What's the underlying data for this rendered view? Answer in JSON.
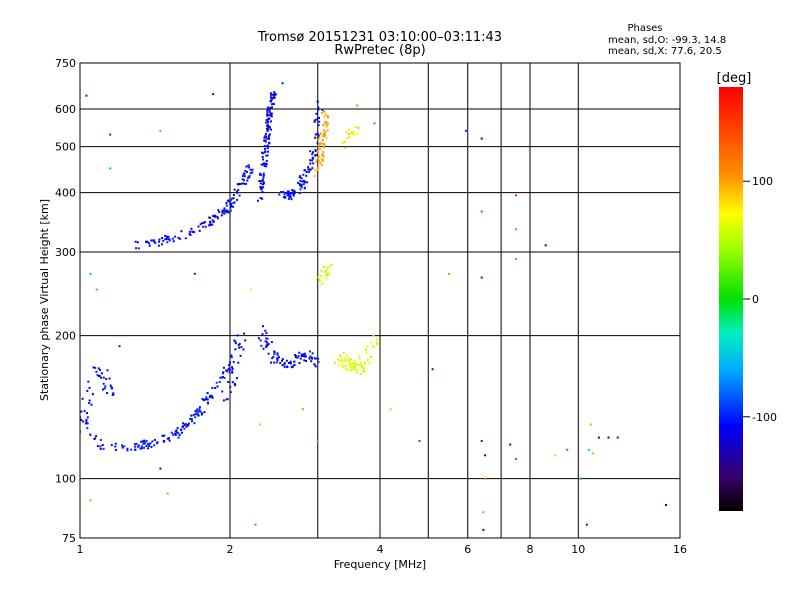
{
  "header": {
    "title": "Tromsø 20151231 03:10:00–03:11:43",
    "subtitle": "RwPretec (8p)",
    "phases_title": "Phases",
    "stats_o": "mean, sd,O: -99.3, 14.8",
    "stats_x": "mean, sd,X:  77.6, 20.5"
  },
  "colorbar": {
    "unit_label": "[deg]",
    "ticks": [
      "100",
      "0",
      "-100"
    ],
    "tick_values": [
      100,
      0,
      -100
    ],
    "range": [
      -180,
      180
    ]
  },
  "chart_data": {
    "type": "scatter",
    "title": "Tromsø 20151231 03:10:00–03:11:43",
    "subtitle": "RwPretec (8p)",
    "xlabel": "Frequency [MHz]",
    "ylabel": "Stationary phase Virtual Height [km]",
    "xscale": "log",
    "yscale": "log",
    "xlim": [
      1,
      16
    ],
    "ylim": [
      75,
      750
    ],
    "grid": true,
    "x_ticks": [
      1,
      2,
      4,
      6,
      8,
      10,
      16
    ],
    "x_tick_labels": [
      "1",
      "2",
      "4",
      "6",
      "8",
      "10",
      "16"
    ],
    "y_ticks": [
      75,
      100,
      200,
      300,
      400,
      500,
      600,
      750
    ],
    "y_tick_labels": [
      "75",
      "100",
      "200",
      "300",
      "400",
      "500",
      "600",
      "750"
    ],
    "extra_vlines": [
      3,
      5,
      7
    ],
    "colorbar_label": "[deg]",
    "color_range": [
      -180,
      180
    ],
    "traces": [
      {
        "x": [
          1.0,
          1.05,
          1.1,
          1.2,
          1.3,
          1.35,
          1.4,
          1.45,
          1.5,
          1.55,
          1.6,
          1.65,
          1.7,
          1.75,
          1.8,
          1.85,
          1.9,
          1.95,
          2.0
        ],
        "y": [
          135,
          125,
          118,
          116,
          117,
          118,
          119,
          120,
          122,
          124,
          127,
          131,
          135,
          140,
          146,
          152,
          158,
          165,
          175
        ],
        "phase": -105,
        "spread": 4,
        "n": 150
      },
      {
        "x": [
          1.0,
          1.03,
          1.06,
          1.1,
          1.13,
          1.16
        ],
        "y": [
          125,
          140,
          160,
          170,
          160,
          150
        ],
        "phase": -108,
        "spread": 6,
        "n": 45
      },
      {
        "x": [
          1.3,
          1.4,
          1.5,
          1.6,
          1.7,
          1.8,
          1.9,
          1.95,
          2.0,
          2.05,
          2.1,
          2.15,
          2.2
        ],
        "y": [
          310,
          312,
          318,
          326,
          335,
          345,
          357,
          366,
          376,
          392,
          412,
          432,
          458
        ],
        "phase": -108,
        "spread": 4,
        "n": 140
      },
      {
        "x": [
          2.3,
          2.32,
          2.35,
          2.38,
          2.4,
          2.42,
          2.45
        ],
        "y": [
          380,
          430,
          480,
          530,
          580,
          620,
          650
        ],
        "phase": -110,
        "spread": 3,
        "n": 130
      },
      {
        "x": [
          2.55,
          2.6,
          2.65,
          2.7,
          2.75,
          2.8,
          2.85,
          2.9,
          2.95,
          3.0,
          3.05
        ],
        "y": [
          400,
          395,
          395,
          400,
          410,
          420,
          440,
          460,
          500,
          560,
          620
        ],
        "phase": -108,
        "spread": 4,
        "n": 100
      },
      {
        "x": [
          2.3,
          2.35,
          2.4,
          2.45,
          2.5,
          2.55,
          2.6,
          2.65,
          2.7,
          2.75,
          2.8,
          2.9,
          3.0
        ],
        "y": [
          215,
          195,
          185,
          180,
          178,
          176,
          175,
          176,
          178,
          180,
          183,
          180,
          175
        ],
        "phase": -108,
        "spread": 5,
        "n": 90
      },
      {
        "x": [
          1.95,
          2.0,
          2.05,
          2.1
        ],
        "y": [
          150,
          160,
          180,
          200
        ],
        "phase": -112,
        "spread": 6,
        "n": 35
      },
      {
        "x": [
          3.0,
          3.02,
          3.05,
          3.08,
          3.1,
          3.12
        ],
        "y": [
          440,
          470,
          500,
          530,
          560,
          600
        ],
        "phase": 100,
        "spread": 4,
        "n": 60
      },
      {
        "x": [
          3.3,
          3.4,
          3.5,
          3.6,
          3.7,
          3.8,
          3.9
        ],
        "y": [
          180,
          175,
          172,
          170,
          175,
          185,
          200
        ],
        "phase": 60,
        "spread": 6,
        "n": 75
      },
      {
        "x": [
          3.05,
          3.1,
          3.15
        ],
        "y": [
          260,
          270,
          280
        ],
        "phase": 55,
        "spread": 5,
        "n": 22
      },
      {
        "x": [
          3.4,
          3.5,
          3.6
        ],
        "y": [
          500,
          530,
          550
        ],
        "phase": 80,
        "spread": 5,
        "n": 16
      }
    ],
    "points": [
      {
        "x": 1.03,
        "y": 640,
        "phase": -100
      },
      {
        "x": 1.15,
        "y": 530,
        "phase": -95
      },
      {
        "x": 1.15,
        "y": 450,
        "phase": -5
      },
      {
        "x": 1.45,
        "y": 540,
        "phase": 110
      },
      {
        "x": 1.85,
        "y": 645,
        "phase": -105
      },
      {
        "x": 2.55,
        "y": 680,
        "phase": -100
      },
      {
        "x": 3.6,
        "y": 610,
        "phase": 120
      },
      {
        "x": 3.9,
        "y": 560,
        "phase": 140
      },
      {
        "x": 1.05,
        "y": 270,
        "phase": -10
      },
      {
        "x": 1.08,
        "y": 250,
        "phase": 120
      },
      {
        "x": 1.7,
        "y": 270,
        "phase": -100
      },
      {
        "x": 2.2,
        "y": 250,
        "phase": 60
      },
      {
        "x": 5.5,
        "y": 270,
        "phase": 110
      },
      {
        "x": 5.95,
        "y": 540,
        "phase": -100
      },
      {
        "x": 6.4,
        "y": 520,
        "phase": -110
      },
      {
        "x": 6.4,
        "y": 365,
        "phase": 150
      },
      {
        "x": 7.5,
        "y": 395,
        "phase": 160
      },
      {
        "x": 7.5,
        "y": 335,
        "phase": 10
      },
      {
        "x": 8.6,
        "y": 310,
        "phase": -120
      },
      {
        "x": 6.4,
        "y": 265,
        "phase": -100
      },
      {
        "x": 7.5,
        "y": 290,
        "phase": 10
      },
      {
        "x": 1.05,
        "y": 90,
        "phase": 20
      },
      {
        "x": 1.5,
        "y": 93,
        "phase": 110
      },
      {
        "x": 1.45,
        "y": 105,
        "phase": -110
      },
      {
        "x": 2.25,
        "y": 80,
        "phase": 130
      },
      {
        "x": 4.0,
        "y": 77,
        "phase": 0
      },
      {
        "x": 6.5,
        "y": 100,
        "phase": 120
      },
      {
        "x": 6.4,
        "y": 120,
        "phase": -100
      },
      {
        "x": 6.5,
        "y": 112,
        "phase": -110
      },
      {
        "x": 7.3,
        "y": 118,
        "phase": -130
      },
      {
        "x": 7.5,
        "y": 110,
        "phase": 150
      },
      {
        "x": 9.0,
        "y": 112,
        "phase": 40
      },
      {
        "x": 9.5,
        "y": 115,
        "phase": 150
      },
      {
        "x": 10.1,
        "y": 100,
        "phase": 0
      },
      {
        "x": 10.6,
        "y": 130,
        "phase": 100
      },
      {
        "x": 10.5,
        "y": 115,
        "phase": -10
      },
      {
        "x": 10.7,
        "y": 113,
        "phase": 30
      },
      {
        "x": 11.0,
        "y": 122,
        "phase": -110
      },
      {
        "x": 11.5,
        "y": 122,
        "phase": -120
      },
      {
        "x": 12.0,
        "y": 122,
        "phase": -100
      },
      {
        "x": 10.4,
        "y": 80,
        "phase": -100
      },
      {
        "x": 15.0,
        "y": 88,
        "phase": -120
      },
      {
        "x": 6.45,
        "y": 78,
        "phase": -110
      },
      {
        "x": 6.45,
        "y": 85,
        "phase": 110
      },
      {
        "x": 4.8,
        "y": 120,
        "phase": -80
      },
      {
        "x": 5.1,
        "y": 170,
        "phase": -100
      },
      {
        "x": 4.2,
        "y": 140,
        "phase": 40
      },
      {
        "x": 2.8,
        "y": 140,
        "phase": 110
      },
      {
        "x": 2.3,
        "y": 130,
        "phase": 90
      },
      {
        "x": 3.0,
        "y": 120,
        "phase": 120
      },
      {
        "x": 1.2,
        "y": 190,
        "phase": -100
      }
    ]
  }
}
